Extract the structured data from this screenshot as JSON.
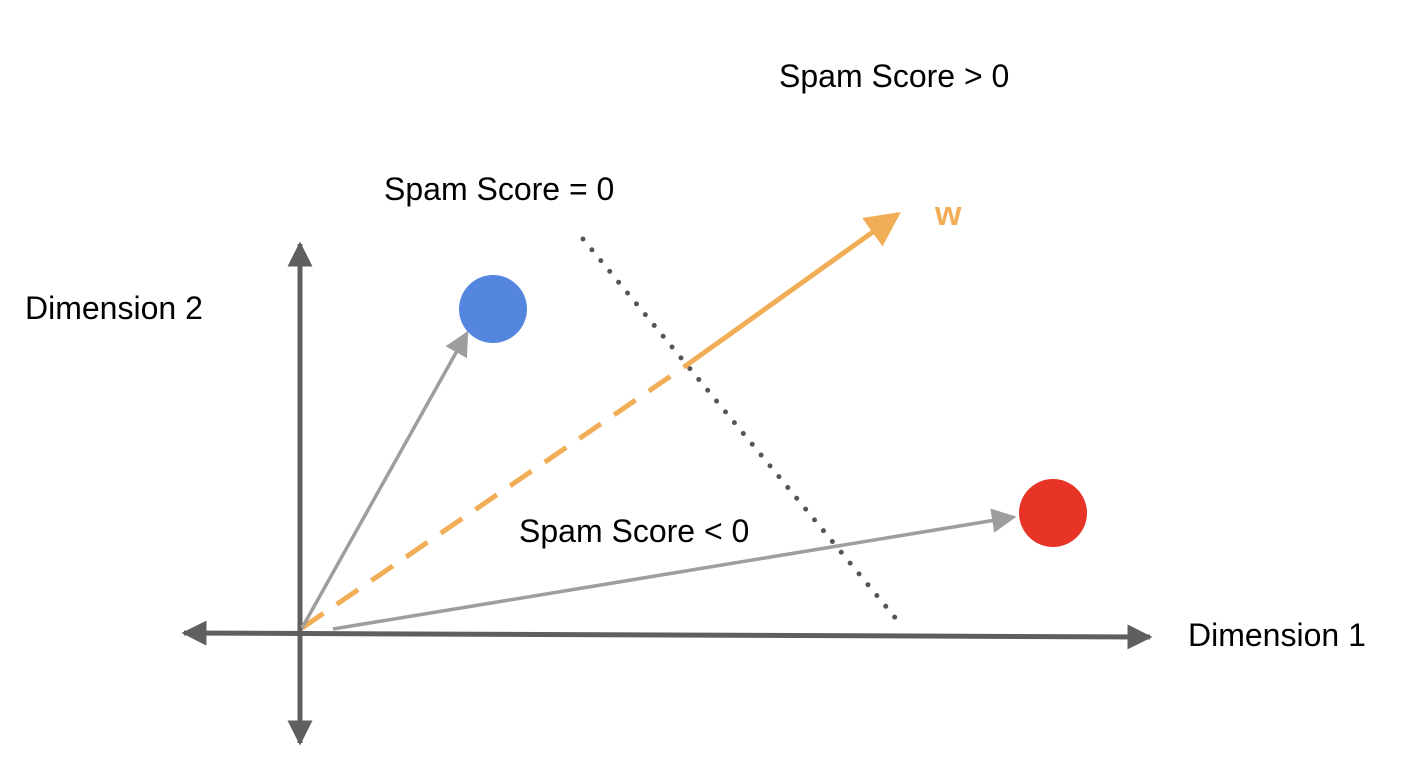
{
  "labels": {
    "spam_positive": "Spam Score > 0",
    "spam_zero": "Spam Score = 0",
    "spam_negative": "Spam Score < 0",
    "dimension_1": "Dimension 1",
    "dimension_2": "Dimension 2",
    "weight_vector": "w"
  },
  "colors": {
    "axis": "#5f5f5f",
    "feature_vector": "#9e9e9e",
    "weight_vector": "#f2ad57",
    "boundary": "#555555",
    "blue_point": "#5486e0",
    "red_point": "#e83427"
  }
}
